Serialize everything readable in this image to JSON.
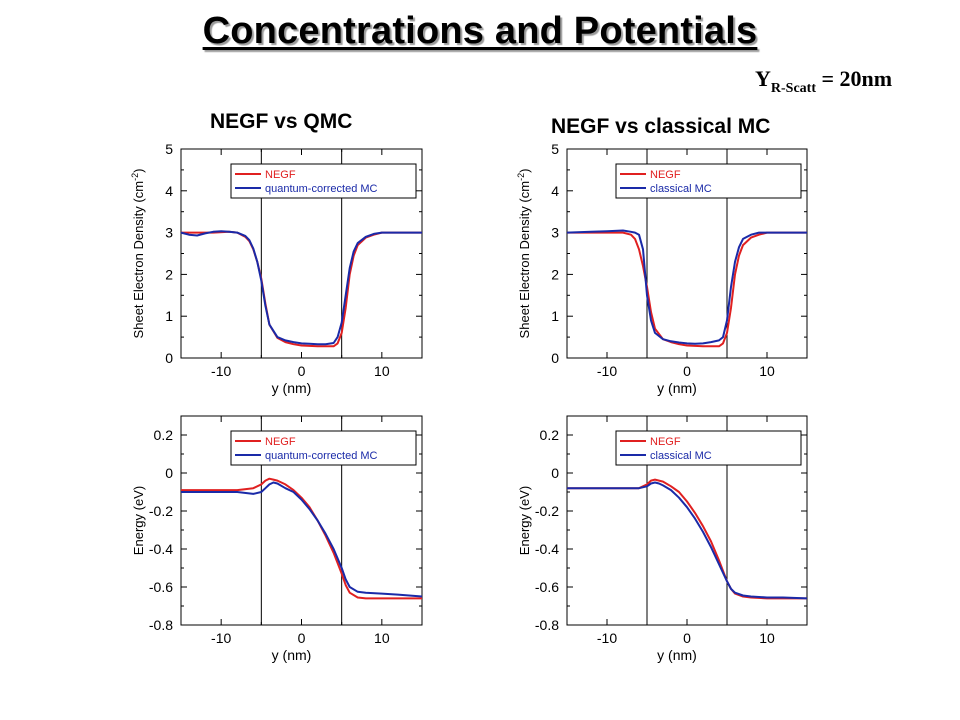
{
  "slide": {
    "title": "Concentrations and Potentials",
    "scatt_y": "Y",
    "scatt_sub": "R-Scatt",
    "scatt_value": "= 20nm",
    "col_left": "NEGF vs QMC",
    "col_right": "NEGF vs classical MC"
  },
  "colors": {
    "negf": "#e02020",
    "mc": "#1a2aa8"
  },
  "chart_data": [
    {
      "type": "line",
      "title": "",
      "xlabel": "y (nm)",
      "ylabel": "Sheet Electron Density (cm-2)",
      "xlim": [
        -15,
        15
      ],
      "ylim": [
        0,
        5
      ],
      "xticks": [
        -10,
        0,
        10
      ],
      "yticks": [
        0,
        1,
        2,
        3,
        4,
        5
      ],
      "ytick_labels": [
        "0",
        "1",
        "2",
        "3",
        "4",
        "5"
      ],
      "vlines": [
        -5,
        5
      ],
      "legend": "top-right",
      "series": [
        {
          "name": "NEGF",
          "color": "#e02020",
          "x": [
            -15,
            -13,
            -11,
            -9,
            -8,
            -7,
            -6.5,
            -6,
            -5.5,
            -5,
            -4.5,
            -4,
            -3,
            -2,
            -1,
            0,
            1,
            2,
            3,
            4,
            4.5,
            5,
            5.5,
            6,
            6.5,
            7,
            8,
            9,
            10,
            12,
            15
          ],
          "y": [
            3.0,
            3.0,
            3.0,
            3.02,
            3.0,
            2.9,
            2.8,
            2.6,
            2.3,
            1.9,
            1.3,
            0.8,
            0.48,
            0.38,
            0.33,
            0.3,
            0.29,
            0.28,
            0.28,
            0.28,
            0.35,
            0.6,
            1.2,
            2.0,
            2.45,
            2.7,
            2.88,
            2.95,
            3.0,
            3.0,
            3.0
          ]
        },
        {
          "name": "quantum-corrected MC",
          "color": "#1a2aa8",
          "x": [
            -15,
            -14,
            -13,
            -12,
            -11,
            -10,
            -9,
            -8,
            -7,
            -6.5,
            -6,
            -5.5,
            -5,
            -4.5,
            -4,
            -3,
            -2,
            -1,
            0,
            1,
            2,
            3,
            4,
            4.5,
            5,
            5.5,
            6,
            6.5,
            7,
            8,
            9,
            10,
            12,
            15
          ],
          "y": [
            3.0,
            2.95,
            2.93,
            2.98,
            3.02,
            3.03,
            3.02,
            3.0,
            2.92,
            2.82,
            2.62,
            2.3,
            1.85,
            1.25,
            0.8,
            0.5,
            0.42,
            0.38,
            0.35,
            0.34,
            0.33,
            0.33,
            0.36,
            0.5,
            0.85,
            1.5,
            2.15,
            2.55,
            2.75,
            2.9,
            2.97,
            3.0,
            3.0,
            3.0
          ]
        }
      ]
    },
    {
      "type": "line",
      "title": "",
      "xlabel": "y (nm)",
      "ylabel": "Sheet Electron Density (cm-2)",
      "xlim": [
        -15,
        15
      ],
      "ylim": [
        0,
        5
      ],
      "xticks": [
        -10,
        0,
        10
      ],
      "yticks": [
        0,
        1,
        2,
        3,
        4,
        5
      ],
      "ytick_labels": [
        "0",
        "1",
        "2",
        "3",
        "4",
        "5"
      ],
      "vlines": [
        -5,
        5
      ],
      "legend": "top-right",
      "series": [
        {
          "name": "NEGF",
          "color": "#e02020",
          "x": [
            -15,
            -12,
            -10,
            -8,
            -7,
            -6.5,
            -6,
            -5.5,
            -5,
            -4.5,
            -4,
            -3,
            -2,
            -1,
            0,
            1,
            2,
            3,
            4,
            4.5,
            5,
            5.5,
            6,
            6.5,
            7,
            8,
            9,
            10,
            12,
            15
          ],
          "y": [
            3.0,
            3.0,
            3.0,
            3.0,
            2.95,
            2.85,
            2.6,
            2.2,
            1.7,
            1.1,
            0.7,
            0.45,
            0.38,
            0.33,
            0.3,
            0.29,
            0.28,
            0.28,
            0.28,
            0.35,
            0.6,
            1.2,
            2.0,
            2.45,
            2.7,
            2.88,
            2.95,
            3.0,
            3.0,
            3.0
          ]
        },
        {
          "name": "classical MC",
          "color": "#1a2aa8",
          "x": [
            -15,
            -12,
            -10,
            -8,
            -7,
            -6.5,
            -6,
            -5.5,
            -5,
            -4.5,
            -4,
            -3,
            -2,
            -1,
            0,
            1,
            2,
            3,
            4,
            4.5,
            5,
            5.5,
            6,
            6.5,
            7,
            8,
            9,
            10,
            12,
            15
          ],
          "y": [
            3.0,
            3.02,
            3.03,
            3.05,
            3.02,
            3.0,
            2.95,
            2.6,
            1.5,
            0.9,
            0.6,
            0.45,
            0.4,
            0.37,
            0.35,
            0.34,
            0.35,
            0.38,
            0.42,
            0.5,
            0.9,
            1.7,
            2.3,
            2.65,
            2.85,
            2.95,
            3.0,
            3.0,
            3.0,
            3.0
          ]
        }
      ]
    },
    {
      "type": "line",
      "title": "",
      "xlabel": "y (nm)",
      "ylabel": "Energy (eV)",
      "xlim": [
        -15,
        15
      ],
      "ylim": [
        -0.8,
        0.3
      ],
      "xticks": [
        -10,
        0,
        10
      ],
      "yticks": [
        -0.8,
        -0.6,
        -0.4,
        -0.2,
        0,
        0.2
      ],
      "ytick_labels": [
        "-0.8",
        "-0.6",
        "-0.4",
        "-0.2",
        "0",
        "0.2"
      ],
      "vlines": [
        -5,
        5
      ],
      "legend": "top-right",
      "series": [
        {
          "name": "NEGF",
          "color": "#e02020",
          "x": [
            -15,
            -12,
            -10,
            -8,
            -6,
            -5,
            -4.5,
            -4,
            -3.5,
            -3,
            -2,
            -1,
            0,
            1,
            2,
            3,
            4,
            5,
            5.5,
            6,
            7,
            8,
            10,
            12,
            15
          ],
          "y": [
            -0.09,
            -0.09,
            -0.09,
            -0.09,
            -0.08,
            -0.06,
            -0.04,
            -0.03,
            -0.035,
            -0.04,
            -0.06,
            -0.09,
            -0.13,
            -0.18,
            -0.25,
            -0.33,
            -0.42,
            -0.53,
            -0.59,
            -0.63,
            -0.655,
            -0.66,
            -0.66,
            -0.66,
            -0.66
          ]
        },
        {
          "name": "quantum-corrected MC",
          "color": "#1a2aa8",
          "x": [
            -15,
            -12,
            -10,
            -8,
            -6,
            -5,
            -4.5,
            -4,
            -3.5,
            -3,
            -2,
            -1,
            0,
            1,
            2,
            3,
            4,
            5,
            5.5,
            6,
            7,
            8,
            10,
            12,
            15
          ],
          "y": [
            -0.1,
            -0.1,
            -0.1,
            -0.1,
            -0.11,
            -0.1,
            -0.08,
            -0.06,
            -0.05,
            -0.055,
            -0.08,
            -0.1,
            -0.14,
            -0.19,
            -0.25,
            -0.32,
            -0.4,
            -0.5,
            -0.56,
            -0.6,
            -0.625,
            -0.63,
            -0.635,
            -0.64,
            -0.65
          ]
        }
      ]
    },
    {
      "type": "line",
      "title": "",
      "xlabel": "y (nm)",
      "ylabel": "Energy (eV)",
      "xlim": [
        -15,
        15
      ],
      "ylim": [
        -0.8,
        0.3
      ],
      "xticks": [
        -10,
        0,
        10
      ],
      "yticks": [
        -0.8,
        -0.6,
        -0.4,
        -0.2,
        0,
        0.2
      ],
      "ytick_labels": [
        "-0.8",
        "-0.6",
        "-0.4",
        "-0.2",
        "0",
        "0.2"
      ],
      "vlines": [
        -5,
        5
      ],
      "legend": "top-right",
      "series": [
        {
          "name": "NEGF",
          "color": "#e02020",
          "x": [
            -15,
            -12,
            -10,
            -8,
            -6,
            -5,
            -4.5,
            -4,
            -3.5,
            -3,
            -2,
            -1,
            0,
            1,
            2,
            3,
            4,
            5,
            5.5,
            6,
            7,
            8,
            10,
            12,
            15
          ],
          "y": [
            -0.08,
            -0.08,
            -0.08,
            -0.08,
            -0.08,
            -0.06,
            -0.04,
            -0.035,
            -0.04,
            -0.045,
            -0.07,
            -0.1,
            -0.15,
            -0.21,
            -0.28,
            -0.36,
            -0.46,
            -0.57,
            -0.61,
            -0.635,
            -0.65,
            -0.655,
            -0.66,
            -0.66,
            -0.66
          ]
        },
        {
          "name": "classical MC",
          "color": "#1a2aa8",
          "x": [
            -15,
            -12,
            -10,
            -8,
            -6,
            -5,
            -4.5,
            -4,
            -3.5,
            -3,
            -2,
            -1,
            0,
            1,
            2,
            3,
            4,
            5,
            5.5,
            6,
            7,
            8,
            10,
            12,
            15
          ],
          "y": [
            -0.08,
            -0.08,
            -0.08,
            -0.08,
            -0.08,
            -0.07,
            -0.055,
            -0.05,
            -0.055,
            -0.065,
            -0.09,
            -0.13,
            -0.18,
            -0.24,
            -0.31,
            -0.39,
            -0.48,
            -0.57,
            -0.61,
            -0.63,
            -0.645,
            -0.65,
            -0.655,
            -0.655,
            -0.66
          ]
        }
      ]
    }
  ]
}
